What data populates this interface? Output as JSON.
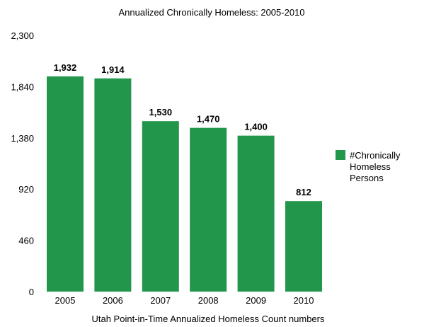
{
  "chart_data": {
    "type": "bar",
    "title": "Annualized Chronically Homeless:  2005-2010",
    "xlabel": "Utah Point-in-Time Annualized Homeless Count numbers",
    "ylabel": "",
    "categories": [
      "2005",
      "2006",
      "2007",
      "2008",
      "2009",
      "2010"
    ],
    "series": [
      {
        "name_lines": [
          "#Chronically",
          "Homeless",
          "Persons"
        ],
        "values": [
          1932,
          1914,
          1530,
          1470,
          1400,
          812
        ],
        "value_labels": [
          "1,932",
          "1,914",
          "1,530",
          "1,470",
          "1,400",
          "812"
        ],
        "color": "#22964a"
      }
    ],
    "ylim": [
      0,
      2300
    ],
    "yticks": [
      0,
      460,
      920,
      1380,
      1840,
      2300
    ],
    "ytick_labels": [
      "0",
      "460",
      "920",
      "1,380",
      "1,840",
      "2,300"
    ],
    "grid": false,
    "legend_position": "right"
  }
}
